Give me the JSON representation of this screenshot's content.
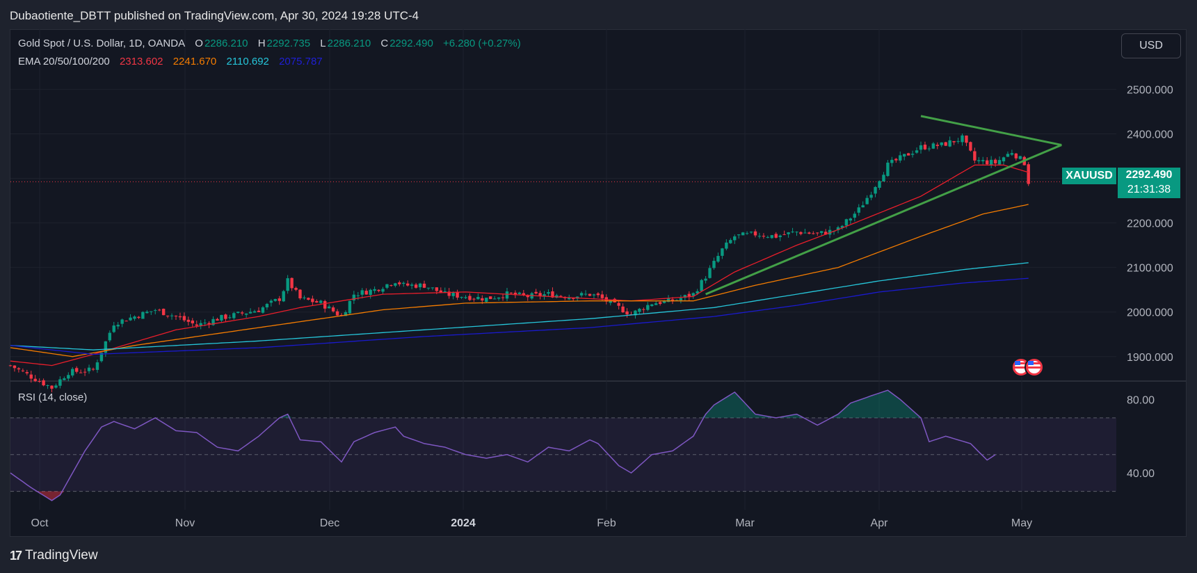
{
  "header": {
    "published": "Dubaotiente_DBTT published on TradingView.com, Apr 30, 2024 19:28 UTC-4"
  },
  "legend": {
    "symbol": "Gold Spot / U.S. Dollar, 1D, OANDA",
    "o_label": "O",
    "o": "2286.210",
    "h_label": "H",
    "h": "2292.735",
    "l_label": "L",
    "l": "2286.210",
    "c_label": "C",
    "c": "2292.490",
    "change": "+6.280 (+0.27%)",
    "ema_label": "EMA 20/50/100/200",
    "ema20": "2313.602",
    "ema50": "2241.670",
    "ema100": "2110.692",
    "ema200": "2075.787"
  },
  "currency_button": "USD",
  "price_tag": {
    "symbol": "XAUUSD",
    "price": "2292.490",
    "countdown": "21:31:38"
  },
  "rsi_label": "RSI (14, close)",
  "footer": {
    "brand": "TradingView",
    "logo": "17"
  },
  "colors": {
    "up": "#089981",
    "down": "#f23645",
    "ema20": "#e91e2b",
    "ema50": "#f57c00",
    "ema100": "#26c6da",
    "ema200": "#1a1acd",
    "trendline": "#43a047",
    "rsi": "#7e57c2"
  },
  "chart_data": [
    {
      "type": "candlestick",
      "symbol": "XAUUSD",
      "interval": "1D",
      "x_ticks": [
        "Oct",
        "Nov",
        "Dec",
        "2024",
        "Feb",
        "Mar",
        "Apr",
        "May"
      ],
      "y_ticks": [
        1900,
        2000,
        2100,
        2200,
        2300,
        2400,
        2500
      ],
      "y_tick_labels": [
        "1900.000",
        "2000.000",
        "2100.000",
        "2200.000",
        "2400.000",
        "2500.000"
      ],
      "ylim": [
        1845,
        2560
      ],
      "last_price": 2292.49,
      "close_anchors": [
        [
          0,
          1880
        ],
        [
          10,
          1830
        ],
        [
          14,
          1865
        ],
        [
          20,
          1870
        ],
        [
          25,
          1975
        ],
        [
          30,
          1990
        ],
        [
          35,
          2005
        ],
        [
          40,
          1990
        ],
        [
          45,
          1970
        ],
        [
          50,
          1985
        ],
        [
          55,
          1995
        ],
        [
          60,
          2005
        ],
        [
          65,
          2030
        ],
        [
          67,
          2070
        ],
        [
          70,
          2030
        ],
        [
          75,
          2020
        ],
        [
          80,
          1990
        ],
        [
          83,
          2040
        ],
        [
          88,
          2050
        ],
        [
          93,
          2070
        ],
        [
          95,
          2060
        ],
        [
          100,
          2060
        ],
        [
          105,
          2040
        ],
        [
          110,
          2035
        ],
        [
          115,
          2030
        ],
        [
          120,
          2040
        ],
        [
          125,
          2035
        ],
        [
          130,
          2040
        ],
        [
          135,
          2035
        ],
        [
          140,
          2040
        ],
        [
          142,
          2035
        ],
        [
          147,
          2010
        ],
        [
          150,
          1995
        ],
        [
          155,
          2020
        ],
        [
          160,
          2025
        ],
        [
          165,
          2040
        ],
        [
          168,
          2080
        ],
        [
          172,
          2140
        ],
        [
          175,
          2170
        ],
        [
          180,
          2175
        ],
        [
          185,
          2170
        ],
        [
          190,
          2180
        ],
        [
          195,
          2175
        ],
        [
          200,
          2185
        ],
        [
          205,
          2230
        ],
        [
          208,
          2270
        ],
        [
          212,
          2330
        ],
        [
          215,
          2345
        ],
        [
          220,
          2370
        ],
        [
          225,
          2375
        ],
        [
          230,
          2390
        ],
        [
          233,
          2340
        ],
        [
          238,
          2335
        ],
        [
          242,
          2360
        ],
        [
          245,
          2335
        ],
        [
          246,
          2292
        ]
      ],
      "ema": {
        "ema20": [
          [
            0,
            1890
          ],
          [
            10,
            1880
          ],
          [
            20,
            1905
          ],
          [
            40,
            1960
          ],
          [
            60,
            1990
          ],
          [
            70,
            2010
          ],
          [
            90,
            2040
          ],
          [
            110,
            2045
          ],
          [
            130,
            2035
          ],
          [
            150,
            2025
          ],
          [
            165,
            2035
          ],
          [
            175,
            2090
          ],
          [
            190,
            2150
          ],
          [
            200,
            2185
          ],
          [
            220,
            2260
          ],
          [
            233,
            2330
          ],
          [
            240,
            2330
          ],
          [
            246,
            2313.602
          ]
        ],
        "ema50": [
          [
            0,
            1920
          ],
          [
            15,
            1900
          ],
          [
            30,
            1925
          ],
          [
            60,
            1965
          ],
          [
            90,
            2005
          ],
          [
            110,
            2020
          ],
          [
            140,
            2025
          ],
          [
            165,
            2025
          ],
          [
            180,
            2060
          ],
          [
            200,
            2100
          ],
          [
            220,
            2170
          ],
          [
            235,
            2220
          ],
          [
            246,
            2241.67
          ]
        ],
        "ema100": [
          [
            0,
            1925
          ],
          [
            20,
            1915
          ],
          [
            60,
            1935
          ],
          [
            100,
            1960
          ],
          [
            140,
            1985
          ],
          [
            170,
            2010
          ],
          [
            190,
            2040
          ],
          [
            210,
            2070
          ],
          [
            230,
            2095
          ],
          [
            246,
            2110.692
          ]
        ],
        "ema200": [
          [
            0,
            1925
          ],
          [
            20,
            1905
          ],
          [
            60,
            1920
          ],
          [
            100,
            1945
          ],
          [
            140,
            1965
          ],
          [
            170,
            1990
          ],
          [
            190,
            2015
          ],
          [
            210,
            2045
          ],
          [
            230,
            2065
          ],
          [
            246,
            2075.787
          ]
        ]
      },
      "trendlines": [
        {
          "from": [
            168,
            2040
          ],
          "to": [
            254,
            2375
          ]
        },
        {
          "from": [
            220,
            2440
          ],
          "to": [
            254,
            2375
          ]
        }
      ]
    },
    {
      "type": "line",
      "name": "RSI (14, close)",
      "y_ticks": [
        40,
        80
      ],
      "y_tick_labels": [
        "40.00",
        "80.00"
      ],
      "bands": [
        30,
        50,
        70
      ],
      "ylim": [
        20,
        90
      ],
      "values": [
        [
          0,
          40
        ],
        [
          5,
          32
        ],
        [
          10,
          25
        ],
        [
          12,
          28
        ],
        [
          15,
          40
        ],
        [
          18,
          52
        ],
        [
          22,
          65
        ],
        [
          25,
          68
        ],
        [
          30,
          64
        ],
        [
          35,
          70
        ],
        [
          40,
          63
        ],
        [
          45,
          62
        ],
        [
          50,
          54
        ],
        [
          55,
          52
        ],
        [
          60,
          60
        ],
        [
          65,
          70
        ],
        [
          67,
          72
        ],
        [
          70,
          58
        ],
        [
          75,
          57
        ],
        [
          80,
          46
        ],
        [
          83,
          57
        ],
        [
          88,
          62
        ],
        [
          93,
          65
        ],
        [
          95,
          60
        ],
        [
          100,
          56
        ],
        [
          105,
          54
        ],
        [
          110,
          50
        ],
        [
          115,
          48
        ],
        [
          120,
          50
        ],
        [
          125,
          46
        ],
        [
          130,
          54
        ],
        [
          135,
          52
        ],
        [
          140,
          58
        ],
        [
          142,
          56
        ],
        [
          147,
          44
        ],
        [
          150,
          40
        ],
        [
          155,
          50
        ],
        [
          160,
          52
        ],
        [
          165,
          60
        ],
        [
          168,
          72
        ],
        [
          170,
          77
        ],
        [
          175,
          84
        ],
        [
          180,
          72
        ],
        [
          185,
          70
        ],
        [
          190,
          72
        ],
        [
          195,
          66
        ],
        [
          200,
          72
        ],
        [
          203,
          78
        ],
        [
          208,
          82
        ],
        [
          212,
          85
        ],
        [
          215,
          80
        ],
        [
          220,
          70
        ],
        [
          222,
          57
        ],
        [
          226,
          60
        ],
        [
          232,
          56
        ],
        [
          236,
          47
        ],
        [
          238,
          50
        ]
      ]
    }
  ]
}
